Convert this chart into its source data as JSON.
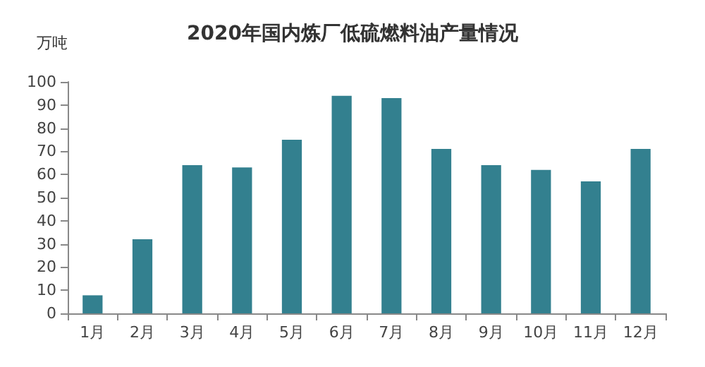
{
  "chart_data": {
    "type": "bar",
    "title": "2020年国内炼厂低硫燃料油产量情况",
    "ylabel": "万吨",
    "categories": [
      "1月",
      "2月",
      "3月",
      "4月",
      "5月",
      "6月",
      "7月",
      "8月",
      "9月",
      "10月",
      "11月",
      "12月"
    ],
    "values": [
      7.8,
      32,
      64,
      63,
      75,
      94,
      93,
      71,
      64,
      62,
      57,
      71
    ],
    "color": "#33808f",
    "ylim": [
      0,
      100
    ],
    "yticks": [
      0,
      10,
      20,
      30,
      40,
      50,
      60,
      70,
      80,
      90,
      100
    ],
    "grid": false
  }
}
